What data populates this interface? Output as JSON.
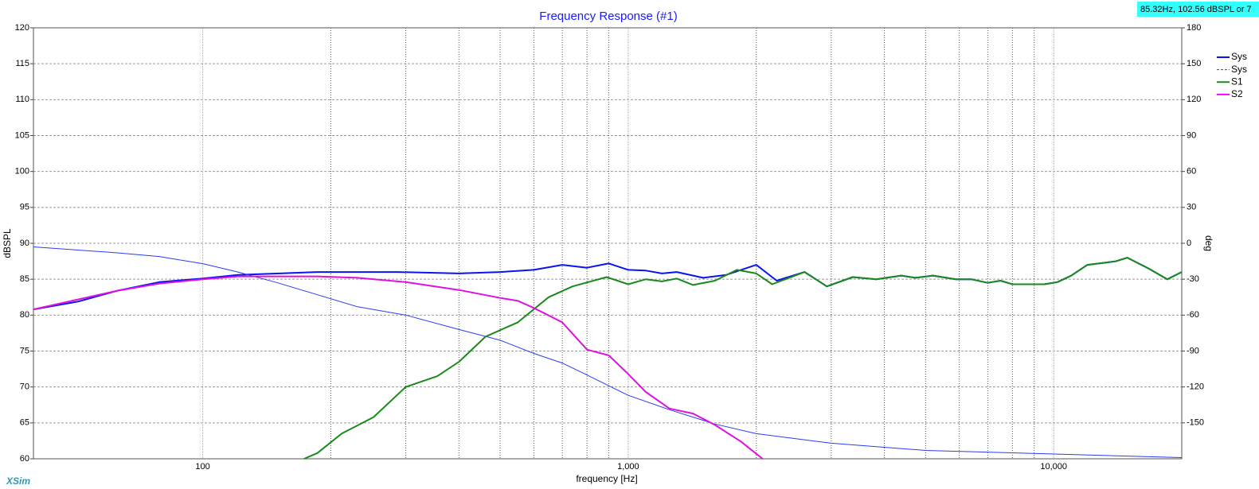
{
  "chart_data": {
    "type": "line",
    "title": "Frequency Response (#1)",
    "x_label": "frequency [Hz]",
    "y_label": "dBSPL",
    "y2_label": "deg",
    "cursor_readout": "85.32Hz, 102.56 dBSPL or 7",
    "logo": "XSim",
    "xscale": "log",
    "xlim": [
      40,
      20000
    ],
    "xticks": [
      100,
      {
        "value": 1000,
        "label": "1,000"
      },
      {
        "value": 10000,
        "label": "10,000"
      }
    ],
    "xgrid_minor": [
      200,
      300,
      400,
      500,
      600,
      700,
      800,
      900,
      2000,
      3000,
      4000,
      5000,
      6000,
      7000,
      8000,
      9000
    ],
    "ylim": [
      60,
      120
    ],
    "yticks": [
      60,
      65,
      70,
      75,
      80,
      85,
      90,
      95,
      100,
      105,
      110,
      115,
      120
    ],
    "y2lim": [
      -180,
      180
    ],
    "y2ticks": [
      -150,
      -120,
      -90,
      -60,
      -30,
      0,
      30,
      60,
      90,
      120,
      150,
      180
    ],
    "grid": true,
    "legend": "right",
    "series": [
      {
        "name": "Sys",
        "color": "#0a14f0",
        "line_width": 2,
        "x": [
          40,
          51,
          63,
          79,
          100,
          121,
          186,
          287,
          400,
          500,
          600,
          700,
          800,
          900,
          1000,
          1100,
          1200,
          1300,
          1500,
          1700,
          2000,
          2234,
          2598,
          2930,
          3370,
          3830,
          4380,
          4740,
          5200,
          5890,
          6400,
          7000,
          7500,
          8000,
          9500,
          10200,
          11000,
          12000,
          13200,
          14000,
          14900,
          16700,
          18500,
          20000
        ],
        "values": [
          80.8,
          81.9,
          83.4,
          84.6,
          85.1,
          85.6,
          86,
          86,
          85.8,
          86,
          86.3,
          87,
          86.6,
          87.2,
          86.3,
          86.2,
          85.8,
          86,
          85.2,
          85.6,
          87,
          84.8,
          86,
          84,
          85.3,
          85,
          85.5,
          85.2,
          85.5,
          85,
          85,
          84.5,
          84.8,
          84.3,
          84.3,
          84.6,
          85.5,
          87,
          87.3,
          87.5,
          88,
          86.5,
          85,
          86
        ]
      },
      {
        "name": "Sys",
        "color": "#2a3cf0",
        "line_width": 1,
        "axis": "y2",
        "x": [
          40,
          63,
          79,
          100,
          121,
          150,
          186,
          231,
          300,
          400,
          500,
          600,
          700,
          800,
          1000,
          1250,
          1600,
          2000,
          3000,
          5000,
          10000,
          20000
        ],
        "values": [
          -3,
          -8,
          -11,
          -17,
          -24,
          -33,
          -43,
          -53,
          -60,
          -72,
          -81,
          -92,
          -100,
          -110,
          -127,
          -139,
          -151,
          -159,
          -167,
          -173,
          -176,
          -179
        ]
      },
      {
        "name": "S1",
        "color": "#1a8a1a",
        "line_width": 2,
        "x": [
          173,
          186,
          212,
          252,
          300,
          356,
          400,
          462,
          550,
          650,
          740,
          890,
          1000,
          1100,
          1200,
          1300,
          1420,
          1600,
          1800,
          2000,
          2180,
          2598,
          2930,
          3370,
          3830,
          4380,
          4740,
          5200,
          5890,
          6400,
          7000,
          7500,
          8000,
          9500,
          10200,
          11000,
          12000,
          13200,
          14000,
          14900,
          16700,
          18500,
          20000
        ],
        "values": [
          60,
          60.8,
          63.5,
          65.8,
          70,
          71.5,
          73.5,
          77,
          79,
          82.5,
          84,
          85.3,
          84.3,
          85,
          84.7,
          85.1,
          84.2,
          84.8,
          86.3,
          85.8,
          84.3,
          86,
          84,
          85.3,
          85,
          85.5,
          85.2,
          85.5,
          85,
          85,
          84.5,
          84.8,
          84.3,
          84.3,
          84.6,
          85.5,
          87,
          87.3,
          87.5,
          88,
          86.5,
          85,
          86
        ]
      },
      {
        "name": "S2",
        "color": "#e010e0",
        "line_width": 2,
        "x": [
          40,
          63,
          79,
          100,
          121,
          186,
          231,
          300,
          400,
          500,
          550,
          600,
          700,
          800,
          900,
          1000,
          1100,
          1250,
          1420,
          1600,
          1840,
          2070
        ],
        "values": [
          80.8,
          83.4,
          84.4,
          85,
          85.4,
          85.4,
          85.2,
          84.6,
          83.5,
          82.4,
          82,
          81,
          79,
          75.2,
          74.4,
          71.8,
          69.3,
          67,
          66.3,
          64.7,
          62.4,
          60
        ]
      }
    ]
  }
}
